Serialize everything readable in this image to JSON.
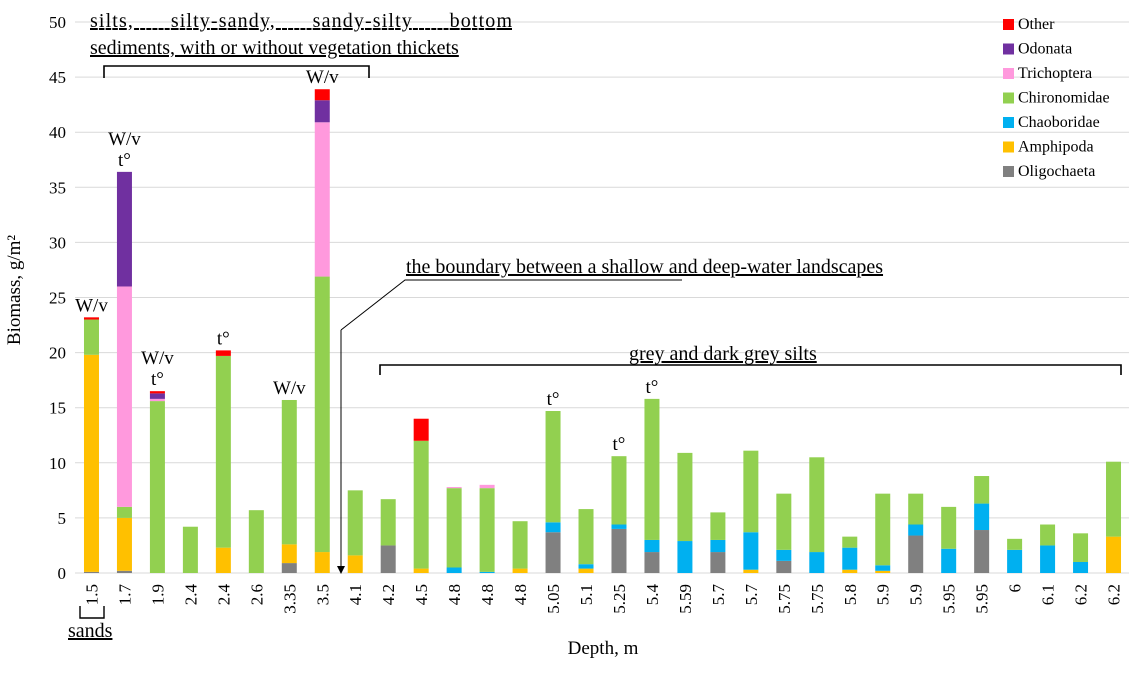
{
  "chart_data": {
    "type": "bar",
    "stacked": true,
    "xlabel": "Depth, m",
    "ylabel": "Biomass, g/m²",
    "ylim": [
      0,
      50
    ],
    "yticks": [
      0,
      5,
      10,
      15,
      20,
      25,
      30,
      35,
      40,
      45,
      50
    ],
    "grid": "horizontal",
    "legend_position": "top-right",
    "categories": [
      "1.5",
      "1.7",
      "1.9",
      "2.4",
      "2.4",
      "2.6",
      "3.35",
      "3.5",
      "4.1",
      "4.2",
      "4.5",
      "4.8",
      "4.8",
      "4.8",
      "5.05",
      "5.1",
      "5.25",
      "5.4",
      "5.59",
      "5.7",
      "5.7",
      "5.75",
      "5.75",
      "5.8",
      "5.9",
      "5.9",
      "5.95",
      "5.95",
      "6",
      "6.1",
      "6.2",
      "6.2"
    ],
    "series": [
      {
        "name": "Oligochaeta",
        "color": "#808080",
        "values": [
          0.1,
          0.2,
          0,
          0,
          0,
          0,
          0.9,
          0,
          0,
          2.5,
          0,
          0,
          0,
          0,
          3.7,
          0,
          4,
          1.9,
          0,
          1.9,
          0,
          1.1,
          0,
          0,
          0,
          3.4,
          0,
          3.9,
          0,
          0,
          0,
          0
        ]
      },
      {
        "name": "Amphipoda",
        "color": "#FFC000",
        "values": [
          19.7,
          4.8,
          0,
          0,
          2.3,
          0,
          1.7,
          1.9,
          1.6,
          0,
          0.4,
          0,
          0,
          0.4,
          0,
          0.4,
          0,
          0,
          0,
          0,
          0.3,
          0,
          0,
          0.3,
          0.2,
          0,
          0,
          0,
          0,
          0,
          0,
          3.3
        ]
      },
      {
        "name": "Chaoboridae",
        "color": "#00B0F0",
        "values": [
          0,
          0,
          0,
          0,
          0,
          0,
          0,
          0,
          0,
          0,
          0,
          0.5,
          0.1,
          0,
          0.9,
          0.4,
          0.4,
          1.1,
          2.9,
          1.1,
          3.4,
          1,
          1.9,
          2,
          0.5,
          1,
          2.2,
          2.4,
          2.1,
          2.5,
          1,
          0
        ]
      },
      {
        "name": "Chironomidae",
        "color": "#92D050",
        "values": [
          3.2,
          1,
          15.6,
          4.2,
          17.4,
          5.7,
          13.1,
          25,
          5.9,
          4.2,
          11.6,
          7.2,
          7.6,
          4.3,
          10.1,
          5,
          6.2,
          12.8,
          8,
          2.5,
          7.4,
          5.1,
          8.6,
          1,
          6.5,
          2.8,
          3.8,
          2.5,
          1,
          1.9,
          2.6,
          6.8
        ]
      },
      {
        "name": "Trichoptera",
        "color": "#FF99DD",
        "values": [
          0,
          20,
          0.2,
          0,
          0,
          0,
          0,
          14,
          0,
          0,
          0,
          0.1,
          0.3,
          0,
          0,
          0,
          0,
          0,
          0,
          0,
          0,
          0,
          0,
          0,
          0,
          0,
          0,
          0,
          0,
          0,
          0,
          0
        ]
      },
      {
        "name": "Odonata",
        "color": "#7030A0",
        "values": [
          0,
          10.4,
          0.5,
          0,
          0,
          0,
          0,
          2,
          0,
          0,
          0,
          0,
          0,
          0,
          0,
          0,
          0,
          0,
          0,
          0,
          0,
          0,
          0,
          0,
          0,
          0,
          0,
          0,
          0,
          0,
          0,
          0
        ]
      },
      {
        "name": "Other",
        "color": "#FF0000",
        "values": [
          0.2,
          0,
          0.2,
          0,
          0.5,
          0,
          0,
          1,
          0,
          0,
          2,
          0,
          0,
          0,
          0,
          0,
          0,
          0,
          0,
          0,
          0,
          0,
          0,
          0,
          0,
          0,
          0,
          0,
          0,
          0,
          0,
          0
        ]
      }
    ],
    "legend_order": [
      "Other",
      "Odonata",
      "Trichoptera",
      "Chironomidae",
      "Chaoboridae",
      "Amphipoda",
      "Oligochaeta"
    ],
    "bar_annotations": [
      {
        "bar": 0,
        "lines": [
          "W/v"
        ]
      },
      {
        "bar": 1,
        "lines": [
          "W/v",
          "t°"
        ]
      },
      {
        "bar": 2,
        "lines": [
          "W/v",
          "t°"
        ]
      },
      {
        "bar": 4,
        "lines": [
          "t°"
        ]
      },
      {
        "bar": 6,
        "lines": [
          "W/v"
        ]
      },
      {
        "bar": 7,
        "lines": [
          "W/v"
        ]
      },
      {
        "bar": 14,
        "lines": [
          "t°"
        ]
      },
      {
        "bar": 16,
        "lines": [
          "t°"
        ]
      },
      {
        "bar": 17,
        "lines": [
          "t°"
        ]
      }
    ],
    "region_labels": {
      "top_bracket_line1": "silts,      silty-sandy,      sandy-silty      bottom",
      "top_bracket_line2": "sediments, with or without vegetation thickets",
      "sands": "sands",
      "boundary": "the boundary between a shallow and deep-water landscapes",
      "grey_silts": "grey and dark grey silts"
    }
  }
}
